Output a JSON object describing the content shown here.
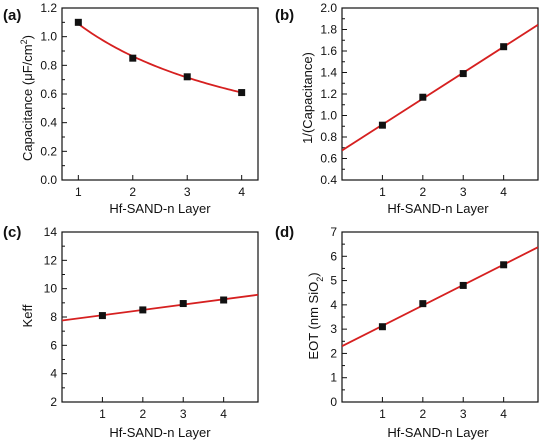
{
  "panels": [
    {
      "label": "(a)",
      "xlabel": "Hf-SAND-n Layer",
      "ylabel_main": "Capacitance (",
      "ylabel_mu": "μ",
      "ylabel_mid": "F/cm",
      "ylabel_sup": "2",
      "ylabel_end": ")"
    },
    {
      "label": "(b)",
      "xlabel": "Hf-SAND-n Layer",
      "ylabel": "1/(Capacitance)"
    },
    {
      "label": "(c)",
      "xlabel": "Hf-SAND-n Layer",
      "ylabel": "Keff"
    },
    {
      "label": "(d)",
      "xlabel": "Hf-SAND-n Layer",
      "ylabel_main": "EOT (nm SiO",
      "ylabel_sub": "2",
      "ylabel_end": ")"
    }
  ],
  "colors": {
    "fit_line": "#d62020",
    "marker": "#111111",
    "axis": "#111111"
  },
  "chart_data": [
    {
      "type": "scatter",
      "x": [
        1,
        2,
        3,
        4
      ],
      "y": [
        1.1,
        0.85,
        0.72,
        0.61
      ],
      "fit": "curve",
      "xlim": [
        0.7,
        4.3
      ],
      "ylim": [
        0.0,
        1.2
      ],
      "xticks": [
        1,
        2,
        3,
        4
      ],
      "yticks": [
        0.0,
        0.2,
        0.4,
        0.6,
        0.8,
        1.0,
        1.2
      ],
      "ytick_labels": [
        "0.0",
        "0.2",
        "0.4",
        "0.6",
        "0.8",
        "1.0",
        "1.2"
      ]
    },
    {
      "type": "scatter",
      "x": [
        1,
        2,
        3,
        4
      ],
      "y": [
        0.91,
        1.17,
        1.39,
        1.64
      ],
      "fit": "linear",
      "xlim": [
        0,
        4.85
      ],
      "ylim": [
        0.4,
        2.0
      ],
      "xticks": [
        1,
        2,
        3,
        4
      ],
      "yticks": [
        0.4,
        0.6,
        0.8,
        1.0,
        1.2,
        1.4,
        1.6,
        1.8,
        2.0
      ],
      "ytick_labels": [
        "0.4",
        "0.6",
        "0.8",
        "1.0",
        "1.2",
        "1.4",
        "1.6",
        "1.8",
        "2.0"
      ]
    },
    {
      "type": "scatter",
      "x": [
        1,
        2,
        3,
        4
      ],
      "y": [
        8.1,
        8.5,
        8.95,
        9.2
      ],
      "fit": "linear",
      "xlim": [
        0,
        4.85
      ],
      "ylim": [
        2,
        14
      ],
      "xticks": [
        1,
        2,
        3,
        4
      ],
      "yticks": [
        2,
        4,
        6,
        8,
        10,
        12,
        14
      ],
      "ytick_labels": [
        "2",
        "4",
        "6",
        "8",
        "10",
        "12",
        "14"
      ]
    },
    {
      "type": "scatter",
      "x": [
        1,
        2,
        3,
        4
      ],
      "y": [
        3.1,
        4.05,
        4.8,
        5.65
      ],
      "fit": "linear",
      "xlim": [
        0,
        4.85
      ],
      "ylim": [
        0,
        7
      ],
      "xticks": [
        1,
        2,
        3,
        4
      ],
      "yticks": [
        0,
        1,
        2,
        3,
        4,
        5,
        6,
        7
      ],
      "ytick_labels": [
        "0",
        "1",
        "2",
        "3",
        "4",
        "5",
        "6",
        "7"
      ]
    }
  ]
}
